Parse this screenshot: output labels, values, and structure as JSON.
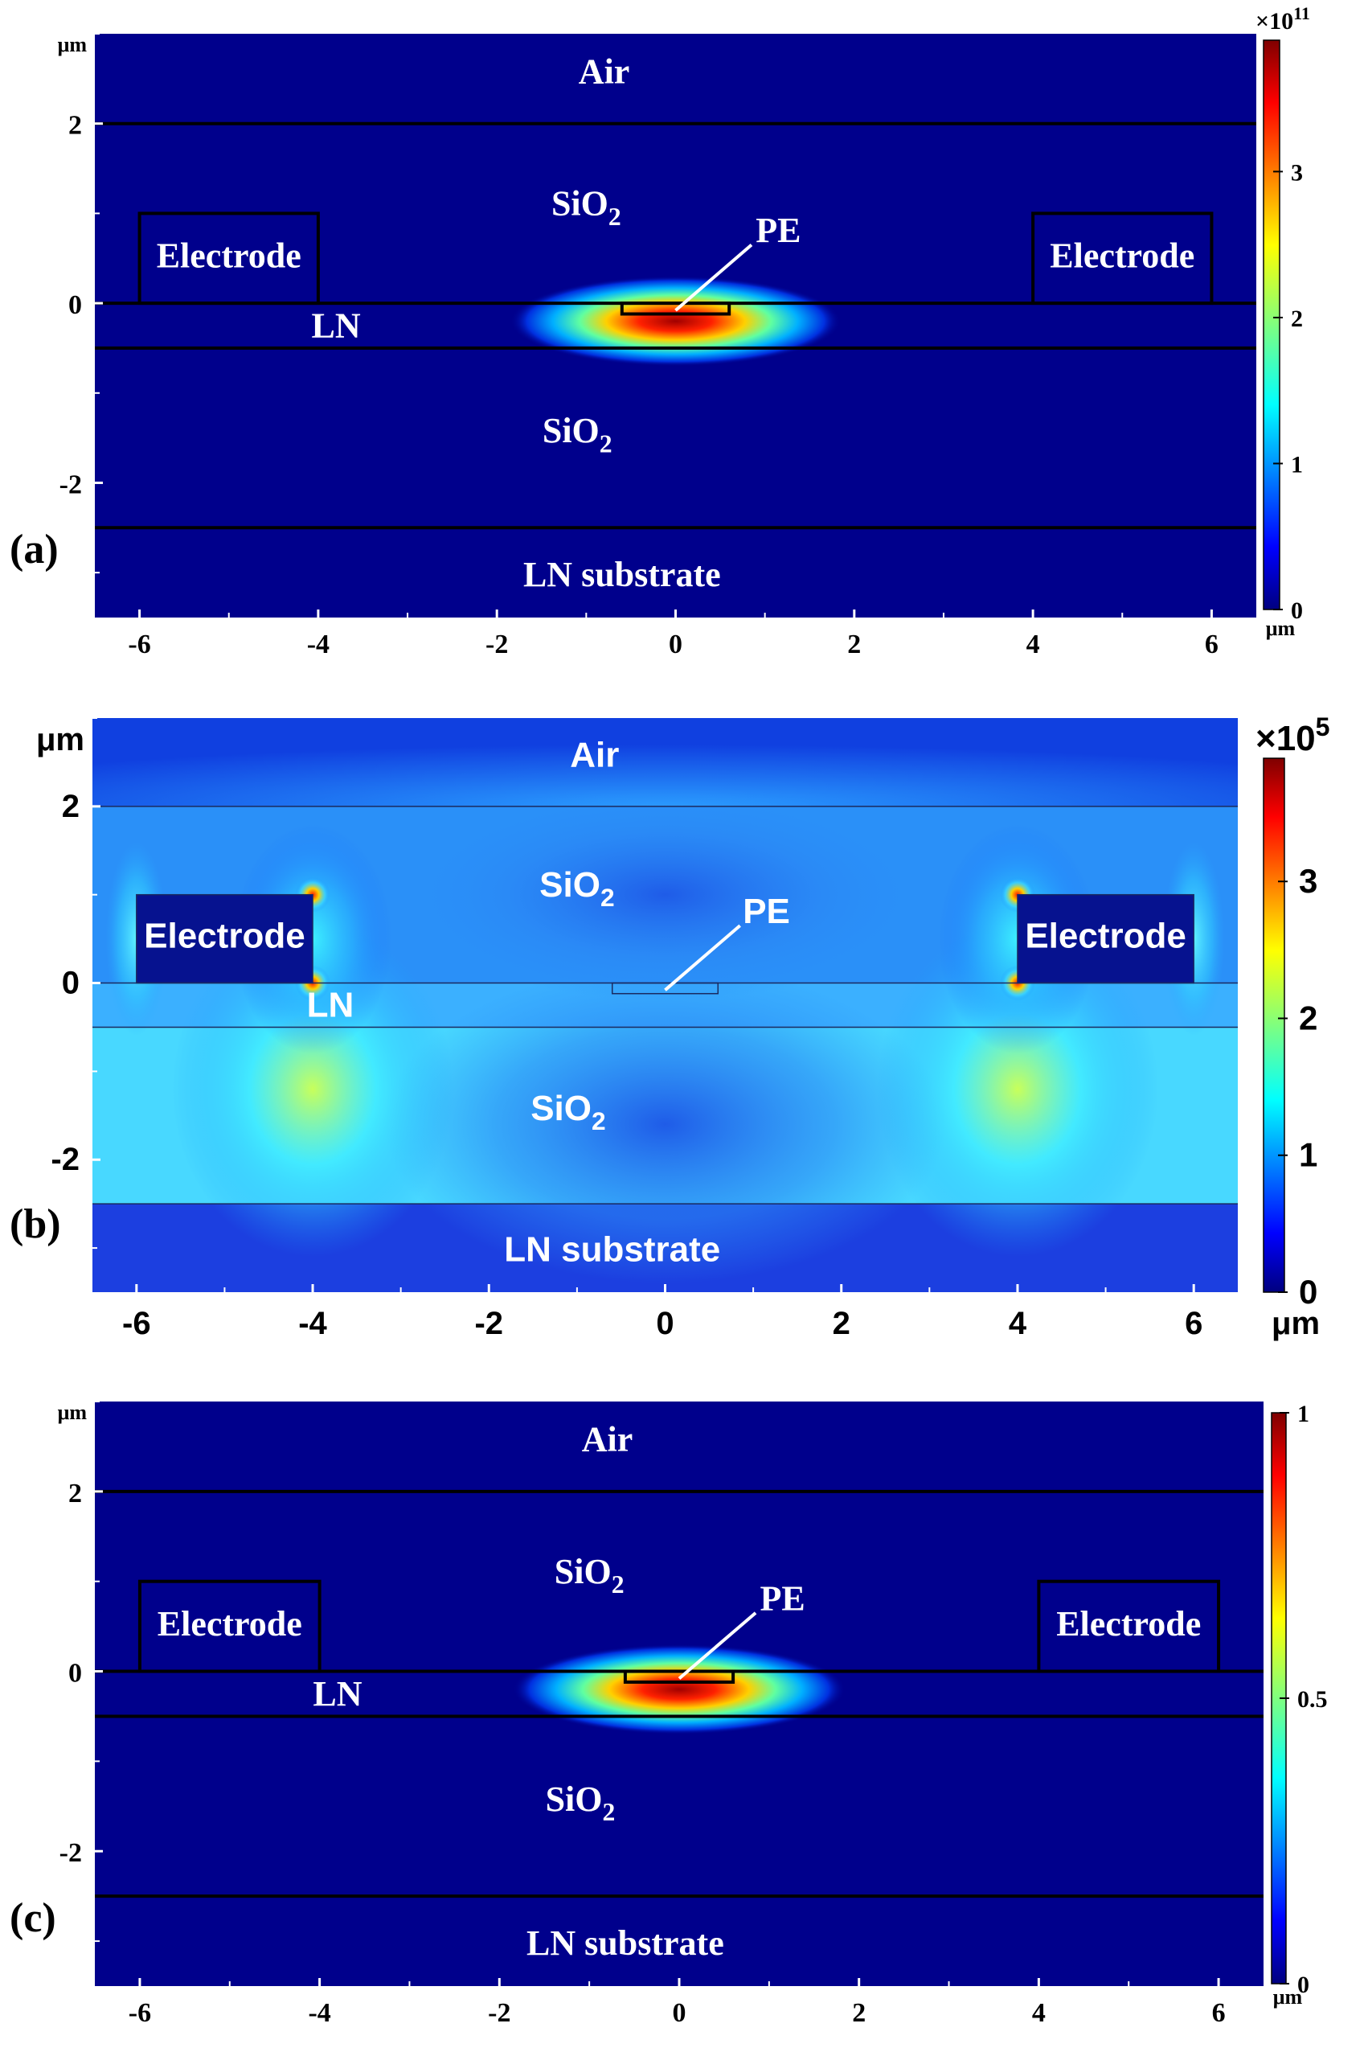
{
  "chart_data": [
    {
      "type": "heatmap",
      "panel_label": "(a)",
      "scale_label": "×10",
      "scale_exp": "11",
      "colorbar_ticks": [
        "0",
        "1",
        "2",
        "3"
      ],
      "colorbar_tick_values": [
        0,
        1,
        2,
        3
      ],
      "colorbar_range": [
        0,
        3.9
      ],
      "y_unit": "μm",
      "x_unit": "μm",
      "x_ticks": [
        "-6",
        "-4",
        "-2",
        "0",
        "2",
        "4",
        "6"
      ],
      "y_ticks": [
        "2",
        "0",
        "-2"
      ],
      "xlim": [
        -6.5,
        6.5
      ],
      "ylim": [
        -3.5,
        3.0
      ],
      "layers": {
        "air": "Air",
        "sio2_top": "SiO",
        "sio2_bottom": "SiO",
        "subscript": "2",
        "ln": "LN",
        "substrate": "LN substrate",
        "pe": "PE",
        "electrode_left": "Electrode",
        "electrode_right": "Electrode"
      },
      "geometry_um": {
        "air_boundary_y": 2.0,
        "ln_top_y": 0.0,
        "ln_bottom_y": -0.5,
        "substrate_top_y": -2.5,
        "electrode_left_x": [
          -6.0,
          -4.0
        ],
        "electrode_right_x": [
          4.0,
          6.0
        ],
        "electrode_y": [
          0.0,
          1.0
        ],
        "pe_x": [
          -0.6,
          0.6
        ],
        "pe_y": [
          -0.12,
          0.0
        ]
      },
      "field_peak_position_um": [
        0.0,
        -0.2
      ]
    },
    {
      "type": "heatmap",
      "panel_label": "(b)",
      "scale_label": "×10",
      "scale_exp": "5",
      "colorbar_ticks": [
        "0",
        "1",
        "2",
        "3"
      ],
      "colorbar_tick_values": [
        0,
        1,
        2,
        3
      ],
      "colorbar_range": [
        0,
        3.9
      ],
      "y_unit": "μm",
      "x_unit": "μm",
      "x_ticks": [
        "-6",
        "-4",
        "-2",
        "0",
        "2",
        "4",
        "6"
      ],
      "y_ticks": [
        "2",
        "0",
        "-2"
      ],
      "xlim": [
        -6.5,
        6.5
      ],
      "ylim": [
        -3.5,
        3.0
      ],
      "layers": {
        "air": "Air",
        "sio2_top": "SiO",
        "sio2_bottom": "SiO",
        "subscript": "2",
        "ln": "LN",
        "substrate": "LN substrate",
        "pe": "PE",
        "electrode_left": "Electrode",
        "electrode_right": "Electrode"
      },
      "field_hotspots_um": [
        [
          -4.0,
          1.0
        ],
        [
          -4.0,
          0.0
        ],
        [
          4.0,
          1.0
        ],
        [
          4.0,
          0.0
        ]
      ]
    },
    {
      "type": "heatmap",
      "panel_label": "(c)",
      "colorbar_ticks": [
        "0",
        "0.5",
        "1"
      ],
      "colorbar_tick_values": [
        0,
        0.5,
        1
      ],
      "colorbar_range": [
        0,
        1
      ],
      "y_unit": "μm",
      "x_unit": "μm",
      "x_ticks": [
        "-6",
        "-4",
        "-2",
        "0",
        "2",
        "4",
        "6"
      ],
      "y_ticks": [
        "2",
        "0",
        "-2"
      ],
      "xlim": [
        -6.5,
        6.5
      ],
      "ylim": [
        -3.5,
        3.0
      ],
      "layers": {
        "air": "Air",
        "sio2_top": "SiO",
        "sio2_bottom": "SiO",
        "subscript": "2",
        "ln": "LN",
        "substrate": "LN substrate",
        "pe": "PE",
        "electrode_left": "Electrode",
        "electrode_right": "Electrode"
      },
      "field_peak_position_um": [
        0.0,
        -0.2
      ]
    }
  ],
  "colors": {
    "background_field": "#00008c",
    "jet_low": "#00007f",
    "jet_high": "#7f0000"
  }
}
